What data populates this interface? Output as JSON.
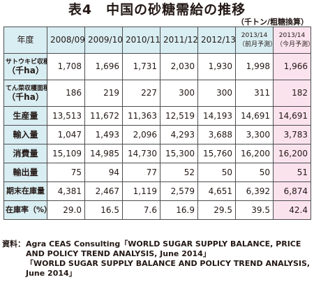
{
  "title": "表4　中国の砂糖需給の推移",
  "unit": "（千トン/粗糖換算）",
  "header": {
    "corner": "年度",
    "years": [
      {
        "line1": "2008/09",
        "line2": ""
      },
      {
        "line1": "2009/10",
        "line2": ""
      },
      {
        "line1": "2010/11",
        "line2": ""
      },
      {
        "line1": "2011/12",
        "line2": ""
      },
      {
        "line1": "2012/13",
        "line2": ""
      },
      {
        "line1": "2013/14",
        "line2": "（前月予測）"
      },
      {
        "line1": "2013/14",
        "line2": "（今月予測）"
      }
    ]
  },
  "rows": [
    {
      "label1": "サトウキビ収穫面積",
      "label2": "（千ha）",
      "values": [
        "1,708",
        "1,696",
        "1,731",
        "2,030",
        "1,930",
        "1,998",
        "1,966"
      ]
    },
    {
      "label1": "てん菜収穫面積",
      "label2": "（千ha）",
      "values": [
        "186",
        "219",
        "227",
        "300",
        "300",
        "311",
        "182"
      ]
    },
    {
      "label1": "生産量",
      "label2": "",
      "values": [
        "13,513",
        "11,672",
        "11,363",
        "12,519",
        "14,193",
        "14,691",
        "14,691"
      ]
    },
    {
      "label1": "輸入量",
      "label2": "",
      "values": [
        "1,047",
        "1,493",
        "2,096",
        "4,293",
        "3,688",
        "3,300",
        "3,783"
      ]
    },
    {
      "label1": "消費量",
      "label2": "",
      "values": [
        "15,109",
        "14,985",
        "14,730",
        "15,300",
        "15,760",
        "16,200",
        "16,200"
      ]
    },
    {
      "label1": "輸出量",
      "label2": "",
      "values": [
        "75",
        "94",
        "77",
        "52",
        "50",
        "50",
        "51"
      ]
    },
    {
      "label1": "期末在庫量",
      "label2": "",
      "values": [
        "4,381",
        "2,467",
        "1,119",
        "2,579",
        "4,651",
        "6,392",
        "6,874"
      ]
    },
    {
      "label1": "在庫率（%）",
      "label2": "",
      "values": [
        "29.0",
        "16.5",
        "7.6",
        "16.9",
        "29.5",
        "39.5",
        "42.4"
      ]
    }
  ],
  "source": {
    "prefix": "資料：",
    "line1": "Agra CEAS Consulting「WORLD SUGAR SUPPLY BALANCE, PRICE AND POLICY TREND ANALYSIS, June 2014」",
    "line2": "「WORLD SUGAR SUPPLY BALANCE AND POLICY TREND ANALYSIS, June 2014」"
  },
  "colors": {
    "header_bg": "#d9eef3",
    "highlight_column_bg": "#fbe3ee",
    "border": "#4d4d4d"
  }
}
